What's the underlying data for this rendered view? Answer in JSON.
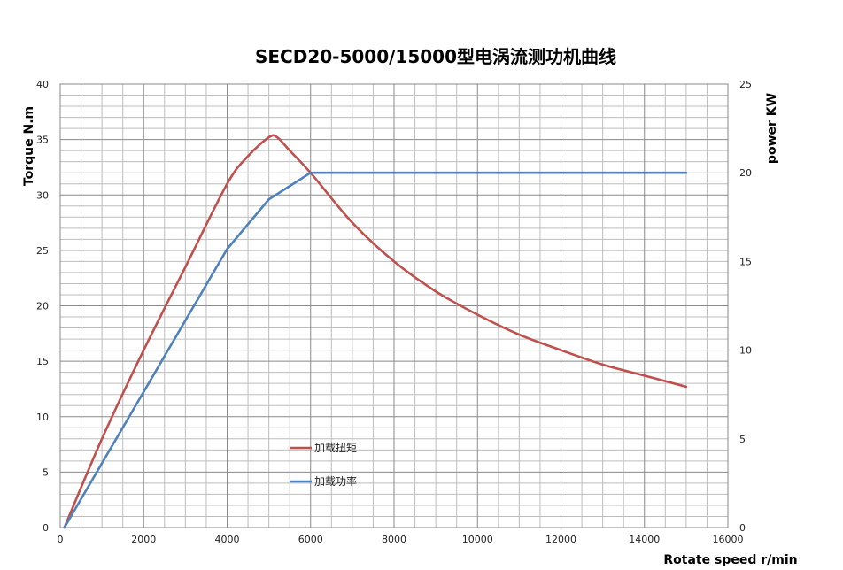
{
  "chart_data": {
    "type": "line",
    "title": "SECD20-5000/15000型电涡流测功机曲线",
    "xlabel": "Rotate speed r/min",
    "ylabel": "Torque N.m",
    "y2label": "power KW",
    "xlim": [
      0,
      16000
    ],
    "ylim": [
      0,
      40
    ],
    "y2lim": [
      0,
      25
    ],
    "x_ticks": [
      "0",
      "2000",
      "4000",
      "6000",
      "8000",
      "10000",
      "12000",
      "14000",
      "16000"
    ],
    "y_ticks": [
      "0",
      "5",
      "10",
      "15",
      "20",
      "25",
      "30",
      "35",
      "40"
    ],
    "y2_ticks": [
      "0",
      "5",
      "10",
      "15",
      "20",
      "25"
    ],
    "grid": true,
    "legend_placement": "center-left",
    "series": [
      {
        "name": "加载扭矩",
        "axis": "left",
        "color": "#c0504d",
        "x": [
          100,
          1000,
          2000,
          3000,
          4000,
          4500,
          5000,
          5200,
          5500,
          6000,
          7000,
          8000,
          9000,
          10000,
          11000,
          12000,
          13000,
          14000,
          15000
        ],
        "values": [
          0,
          8,
          16,
          23.5,
          31,
          33.5,
          35.2,
          35.2,
          34,
          32,
          27.5,
          24,
          21.3,
          19.2,
          17.4,
          16,
          14.7,
          13.7,
          12.7
        ]
      },
      {
        "name": "加载功率",
        "axis": "right",
        "color": "#4f81bd",
        "x": [
          100,
          4000,
          5000,
          6000,
          15000
        ],
        "values": [
          0,
          15.7,
          18.5,
          20,
          20
        ]
      }
    ]
  }
}
